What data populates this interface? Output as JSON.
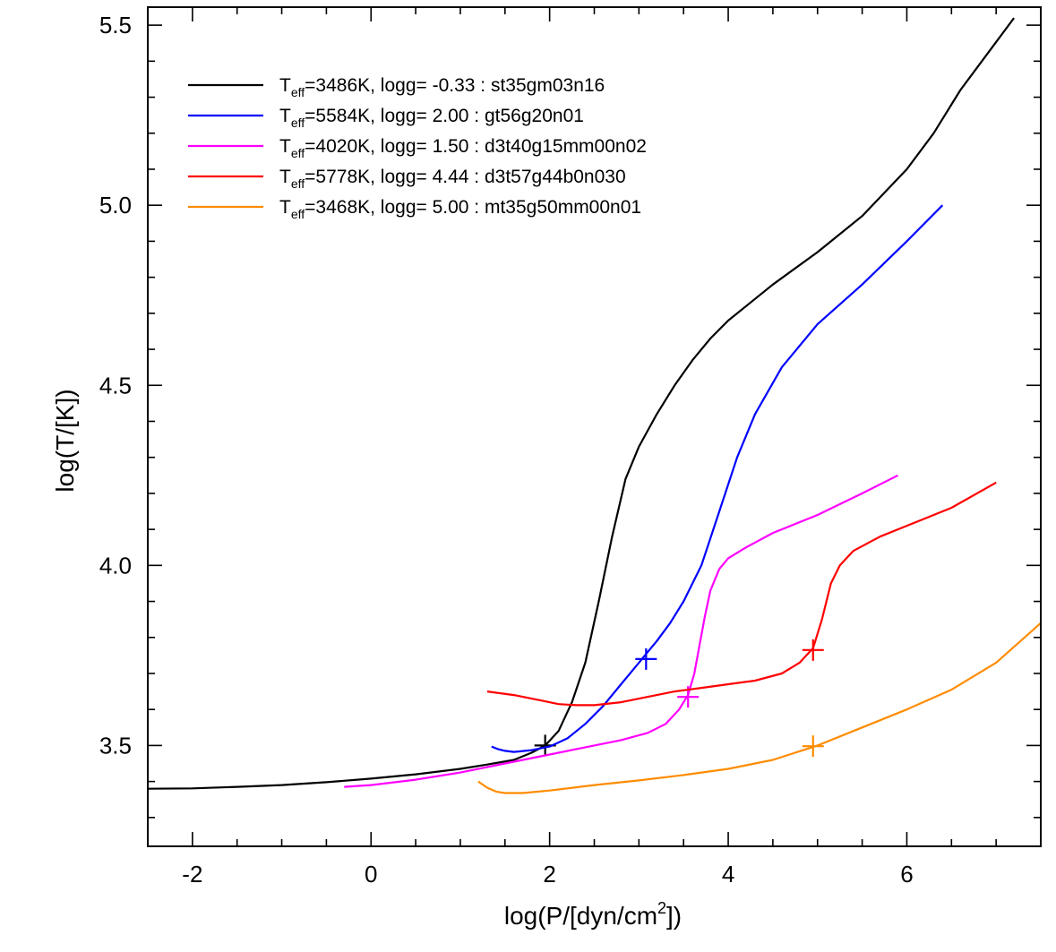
{
  "chart_data": {
    "type": "line",
    "xlabel": {
      "base": "log(P/[dyn/cm",
      "sup": "2",
      "tail": "])"
    },
    "ylabel": "log(T/[K])",
    "xlim": [
      -2.5,
      7.5
    ],
    "ylim": [
      3.22,
      5.55
    ],
    "xticks": [
      -2,
      0,
      2,
      4,
      6
    ],
    "xtick_labels": [
      "-2",
      "0",
      "2",
      "4",
      "6"
    ],
    "yticks": [
      3.5,
      4.0,
      4.5,
      5.0,
      5.5
    ],
    "ytick_labels": [
      "3.5",
      "4.0",
      "4.5",
      "5.0",
      "5.5"
    ],
    "grid": false,
    "legend_position": "top-left",
    "series": [
      {
        "name": "T_eff=3486K, logg= -0.33 : st35gm03n16",
        "legend": {
          "pre": "T",
          "sub": "eff",
          "post": "=3486K, logg= -0.33 : st35gm03n16"
        },
        "color": "#000000",
        "x": [
          -2.5,
          -2.0,
          -1.5,
          -1.0,
          -0.5,
          0.0,
          0.5,
          1.0,
          1.3,
          1.6,
          1.8,
          1.95,
          2.1,
          2.25,
          2.4,
          2.55,
          2.7,
          2.85,
          3.0,
          3.2,
          3.4,
          3.6,
          3.8,
          4.0,
          4.2,
          4.5,
          5.0,
          5.5,
          6.0,
          6.3,
          6.6,
          6.9,
          7.2
        ],
        "y": [
          3.38,
          3.381,
          3.385,
          3.39,
          3.398,
          3.408,
          3.42,
          3.435,
          3.447,
          3.46,
          3.48,
          3.5,
          3.54,
          3.62,
          3.73,
          3.9,
          4.08,
          4.24,
          4.33,
          4.42,
          4.5,
          4.57,
          4.63,
          4.68,
          4.72,
          4.78,
          4.87,
          4.97,
          5.1,
          5.2,
          5.32,
          5.42,
          5.52
        ],
        "marker": {
          "x": 1.95,
          "y": 3.5
        }
      },
      {
        "name": "T_eff=5584K, logg= 2.00 : gt56g20n01",
        "legend": {
          "pre": "T",
          "sub": "eff",
          "post": "=5584K, logg= 2.00 : gt56g20n01"
        },
        "color": "#0000ff",
        "x": [
          1.35,
          1.42,
          1.5,
          1.6,
          1.8,
          2.0,
          2.2,
          2.4,
          2.6,
          2.8,
          3.0,
          3.1,
          3.2,
          3.35,
          3.5,
          3.7,
          3.9,
          4.1,
          4.3,
          4.6,
          5.0,
          5.5,
          6.0,
          6.4
        ],
        "y": [
          3.497,
          3.49,
          3.485,
          3.482,
          3.487,
          3.497,
          3.52,
          3.56,
          3.61,
          3.67,
          3.73,
          3.76,
          3.79,
          3.84,
          3.9,
          4.0,
          4.15,
          4.3,
          4.42,
          4.55,
          4.67,
          4.78,
          4.9,
          5.0
        ],
        "marker": {
          "x": 3.08,
          "y": 3.74
        }
      },
      {
        "name": "T_eff=4020K, logg= 1.50 : d3t40g15mm00n02",
        "legend": {
          "pre": "T",
          "sub": "eff",
          "post": "=4020K, logg= 1.50 : d3t40g15mm00n02"
        },
        "color": "#ff00ff",
        "x": [
          -0.3,
          0.0,
          0.5,
          1.0,
          1.5,
          2.0,
          2.5,
          2.8,
          3.1,
          3.3,
          3.45,
          3.55,
          3.62,
          3.68,
          3.74,
          3.8,
          3.9,
          4.0,
          4.2,
          4.5,
          5.0,
          5.5,
          5.9
        ],
        "y": [
          3.385,
          3.39,
          3.405,
          3.425,
          3.45,
          3.475,
          3.5,
          3.515,
          3.535,
          3.56,
          3.6,
          3.64,
          3.7,
          3.78,
          3.86,
          3.93,
          3.99,
          4.02,
          4.05,
          4.09,
          4.14,
          4.2,
          4.25
        ],
        "marker": {
          "x": 3.55,
          "y": 3.635
        }
      },
      {
        "name": "T_eff=5778K, logg= 4.44 : d3t57g44b0n030",
        "legend": {
          "pre": "T",
          "sub": "eff",
          "post": "=5778K, logg= 4.44 : d3t57g44b0n030"
        },
        "color": "#ff0000",
        "x": [
          1.3,
          1.6,
          1.9,
          2.1,
          2.3,
          2.5,
          2.8,
          3.1,
          3.4,
          3.7,
          4.0,
          4.3,
          4.6,
          4.8,
          4.95,
          5.05,
          5.15,
          5.25,
          5.4,
          5.7,
          6.0,
          6.5,
          7.0
        ],
        "y": [
          3.65,
          3.64,
          3.625,
          3.615,
          3.612,
          3.612,
          3.62,
          3.635,
          3.65,
          3.66,
          3.67,
          3.68,
          3.7,
          3.73,
          3.77,
          3.85,
          3.95,
          4.0,
          4.04,
          4.08,
          4.11,
          4.16,
          4.23
        ],
        "marker": {
          "x": 4.95,
          "y": 3.765
        }
      },
      {
        "name": "T_eff=3468K, logg= 5.00 : mt35g50mm00n01",
        "legend": {
          "pre": "T",
          "sub": "eff",
          "post": "=3468K, logg= 5.00 : mt35g50mm00n01"
        },
        "color": "#ff8c00",
        "x": [
          1.2,
          1.3,
          1.4,
          1.5,
          1.7,
          2.0,
          2.5,
          3.0,
          3.5,
          4.0,
          4.5,
          5.0,
          5.5,
          6.0,
          6.5,
          7.0,
          7.5
        ],
        "y": [
          3.4,
          3.383,
          3.372,
          3.368,
          3.368,
          3.375,
          3.39,
          3.403,
          3.418,
          3.435,
          3.46,
          3.5,
          3.55,
          3.6,
          3.655,
          3.73,
          3.84
        ],
        "marker": {
          "x": 4.95,
          "y": 3.498
        }
      }
    ]
  }
}
